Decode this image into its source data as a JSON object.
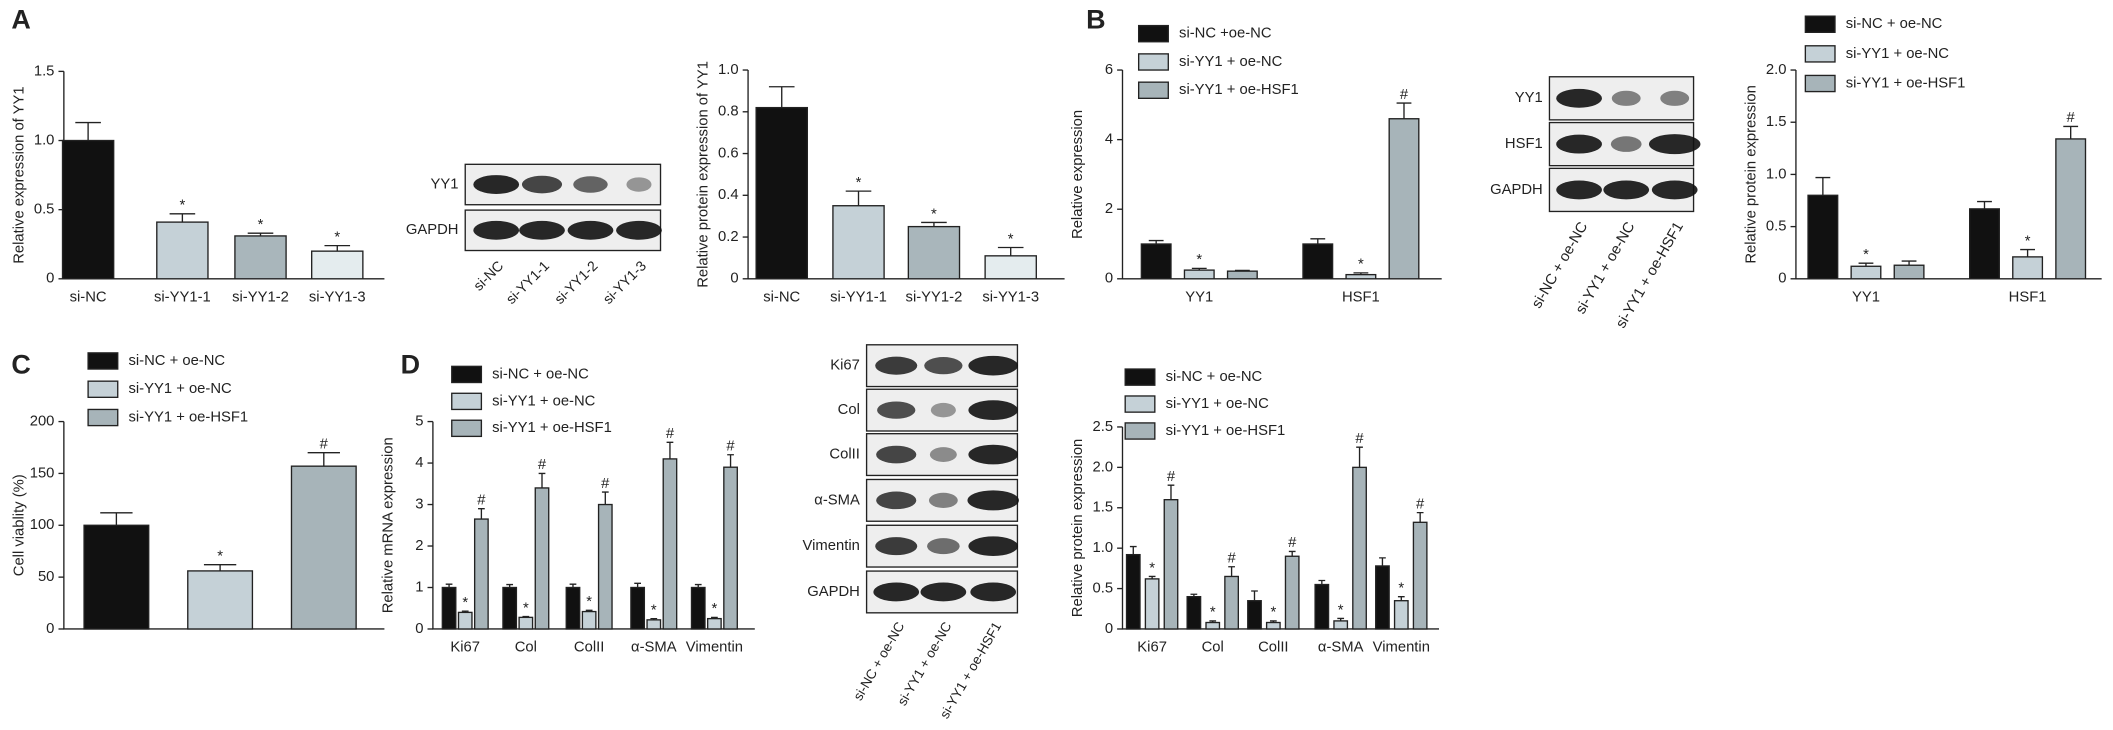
{
  "panel_labels": [
    "A",
    "B",
    "C",
    "D"
  ],
  "blots": [
    {
      "rows": [
        "YY1",
        "GAPDH"
      ],
      "lanes": [
        "si-NC",
        "si-YY1-1",
        "si-YY1-2",
        "si-YY1-3"
      ]
    },
    {
      "rows": [
        "YY1",
        "HSF1",
        "GAPDH"
      ],
      "lanes": [
        "si-NC + oe-NC",
        "si-YY1 + oe-NC",
        "si-YY1 + oe-HSF1"
      ]
    },
    {
      "rows": [
        "Ki67",
        "Col",
        "ColII",
        "α-SMA",
        "Vimentin",
        "GAPDH"
      ],
      "lanes": [
        "si-NC + oe-NC",
        "si-YY1 + oe-NC",
        "si-YY1 + oe-HSF1"
      ]
    }
  ],
  "chart_data": [
    {
      "type": "bar",
      "y_label": "Relative expression of YY1",
      "categories": [
        "si-NC",
        "si-YY1-1",
        "si-YY1-2",
        "si-YY1-3"
      ],
      "values": [
        1.0,
        0.41,
        0.31,
        0.2
      ],
      "errors": [
        0.13,
        0.06,
        0.02,
        0.04
      ],
      "annotations": [
        null,
        "*",
        "*",
        "*"
      ],
      "colors": [
        "#111111",
        "#c5d1d7",
        "#a9b6bb",
        "#e4ecee"
      ],
      "ylim": [
        0,
        1.5
      ],
      "yticks": [
        0,
        0.5,
        {
          "value": 1,
          "label": "1.0"
        },
        1.5
      ]
    },
    {
      "type": "bar",
      "y_label": "Relative protein expression of YY1",
      "categories": [
        "si-NC",
        "si-YY1-1",
        "si-YY1-2",
        "si-YY1-3"
      ],
      "values": [
        0.82,
        0.35,
        0.25,
        0.11
      ],
      "errors": [
        0.1,
        0.07,
        0.02,
        0.04
      ],
      "annotations": [
        null,
        "*",
        "*",
        "*"
      ],
      "colors": [
        "#111111",
        "#c5d1d7",
        "#a9b6bb",
        "#e4ecee"
      ],
      "ylim": [
        0,
        1
      ],
      "yticks": [
        0,
        0.2,
        0.4,
        0.6,
        0.8,
        {
          "value": 1,
          "label": "1.0"
        }
      ]
    },
    {
      "type": "grouped_bar",
      "y_label": "Relative expression",
      "categories": [
        "YY1",
        "HSF1"
      ],
      "ylim": [
        0,
        6
      ],
      "yticks": [
        0,
        2,
        4,
        6
      ],
      "legend": "top-left",
      "series": [
        {
          "name": "si-NC +oe-NC",
          "color": "#111111",
          "values": [
            1.0,
            1.0
          ],
          "errors": [
            0.1,
            0.15
          ],
          "annotations": [
            null,
            null
          ]
        },
        {
          "name": "si-YY1 + oe-NC",
          "color": "#c5d1d7",
          "values": [
            0.25,
            0.12
          ],
          "errors": [
            0.05,
            0.05
          ],
          "annotations": [
            "*",
            "*"
          ]
        },
        {
          "name": "si-YY1 + oe-HSF1",
          "color": "#a7b4b9",
          "values": [
            0.22,
            4.6
          ],
          "errors": [
            0.02,
            0.45
          ],
          "annotations": [
            null,
            "#"
          ]
        }
      ]
    },
    {
      "type": "grouped_bar",
      "y_label": "Relative protein expression",
      "categories": [
        "YY1",
        "HSF1"
      ],
      "ylim": [
        0,
        2
      ],
      "yticks": [
        0,
        0.5,
        {
          "value": 1,
          "label": "1.0"
        },
        1.5,
        {
          "value": 2,
          "label": "2.0"
        }
      ],
      "legend": "top-left",
      "series": [
        {
          "name": "si-NC + oe-NC",
          "color": "#111111",
          "values": [
            0.8,
            0.67
          ],
          "errors": [
            0.17,
            0.07
          ],
          "annotations": [
            null,
            null
          ]
        },
        {
          "name": "si-YY1 + oe-NC",
          "color": "#c5d1d7",
          "values": [
            0.12,
            0.21
          ],
          "errors": [
            0.03,
            0.07
          ],
          "annotations": [
            "*",
            "*"
          ]
        },
        {
          "name": "si-YY1 + oe-HSF1",
          "color": "#a7b4b9",
          "values": [
            0.13,
            1.34
          ],
          "errors": [
            0.04,
            0.12
          ],
          "annotations": [
            null,
            "#"
          ]
        }
      ]
    },
    {
      "type": "grouped_bar",
      "y_label": "Cell viablity (%)",
      "categories": [
        null
      ],
      "ylim": [
        0,
        200
      ],
      "yticks": [
        0,
        50,
        100,
        150,
        200
      ],
      "legend": "top-left",
      "series": [
        {
          "name": "si-NC + oe-NC",
          "color": "#111111",
          "values": [
            100
          ],
          "errors": [
            12
          ],
          "annotations": [
            null
          ]
        },
        {
          "name": "si-YY1 + oe-NC",
          "color": "#c5d1d7",
          "values": [
            56
          ],
          "errors": [
            6
          ],
          "annotations": [
            "*"
          ]
        },
        {
          "name": "si-YY1 + oe-HSF1",
          "color": "#a7b4b9",
          "values": [
            157
          ],
          "errors": [
            13
          ],
          "annotations": [
            "#"
          ]
        }
      ]
    },
    {
      "type": "grouped_bar",
      "y_label": "Relative mRNA expression",
      "categories": [
        "Ki67",
        "Col",
        "ColII",
        "α-SMA",
        "Vimentin"
      ],
      "ylim": [
        0,
        5
      ],
      "yticks": [
        0,
        1,
        2,
        3,
        4,
        5
      ],
      "legend": "top-left",
      "series": [
        {
          "name": "si-NC + oe-NC",
          "color": "#111111",
          "values": [
            1,
            1,
            1,
            1,
            1
          ],
          "errors": [
            0.08,
            0.07,
            0.08,
            0.1,
            0.07
          ],
          "annotations": [
            null,
            null,
            null,
            null,
            null
          ]
        },
        {
          "name": "si-YY1 + oe-NC",
          "color": "#c5d1d7",
          "values": [
            0.4,
            0.28,
            0.42,
            0.22,
            0.25
          ],
          "errors": [
            0.03,
            0.02,
            0.03,
            0.03,
            0.03
          ],
          "annotations": [
            "*",
            "*",
            "*",
            "*",
            "*"
          ]
        },
        {
          "name": "si-YY1 + oe-HSF1",
          "color": "#a7b4b9",
          "values": [
            2.65,
            3.4,
            3.0,
            4.1,
            3.9
          ],
          "errors": [
            0.25,
            0.35,
            0.3,
            0.4,
            0.3
          ],
          "annotations": [
            "#",
            "#",
            "#",
            "#",
            "#"
          ]
        }
      ]
    },
    {
      "type": "grouped_bar",
      "y_label": "Relative protein expression",
      "categories": [
        "Ki67",
        "Col",
        "ColII",
        "α-SMA",
        "Vimentin"
      ],
      "ylim": [
        0,
        2.5
      ],
      "yticks": [
        0,
        0.5,
        {
          "value": 1,
          "label": "1.0"
        },
        1.5,
        {
          "value": 2,
          "label": "2.0"
        },
        2.5
      ],
      "legend": "top-left",
      "series": [
        {
          "name": "si-NC + oe-NC",
          "color": "#111111",
          "values": [
            0.92,
            0.4,
            0.35,
            0.55,
            0.78
          ],
          "errors": [
            0.1,
            0.03,
            0.12,
            0.05,
            0.1
          ],
          "annotations": [
            null,
            null,
            null,
            null,
            null
          ]
        },
        {
          "name": "si-YY1 + oe-NC",
          "color": "#c5d1d7",
          "values": [
            0.62,
            0.08,
            0.08,
            0.1,
            0.35
          ],
          "errors": [
            0.03,
            0.02,
            0.02,
            0.03,
            0.05
          ],
          "annotations": [
            "*",
            "*",
            "*",
            "*",
            "*"
          ]
        },
        {
          "name": "si-YY1 + oe-HSF1",
          "color": "#a7b4b9",
          "values": [
            1.6,
            0.65,
            0.9,
            2.0,
            1.32
          ],
          "errors": [
            0.18,
            0.12,
            0.06,
            0.25,
            0.12
          ],
          "annotations": [
            "#",
            "#",
            "#",
            "#",
            "#"
          ]
        }
      ]
    }
  ]
}
